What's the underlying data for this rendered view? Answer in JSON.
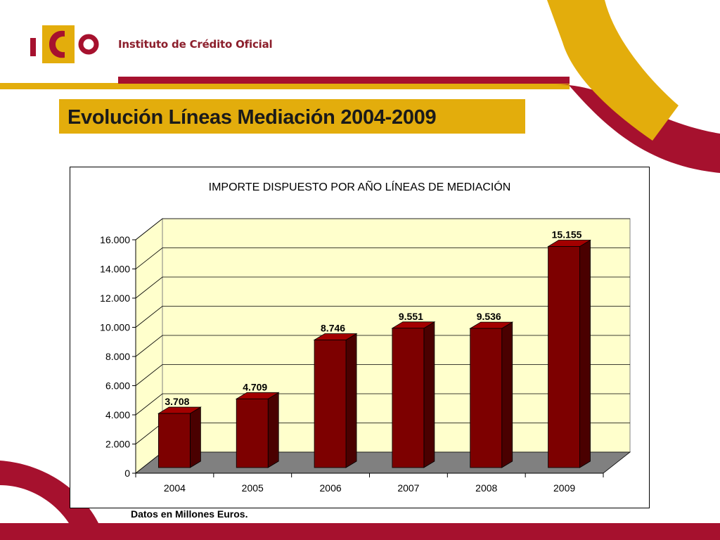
{
  "header": {
    "brand_text": "Instituto de Crédito Oficial",
    "logo_text": "ICO"
  },
  "slide": {
    "title": "Evolución Líneas Mediación 2004-2009",
    "footnote": "Datos en Millones Euros."
  },
  "colors": {
    "crimson": "#a6112e",
    "gold": "#e3ad0c",
    "bar_front": "#7d0000",
    "bar_side": "#4a0000",
    "bar_top": "#a30000",
    "plot_wall": "#ffffcc",
    "plot_floor": "#808080"
  },
  "chart_data": {
    "type": "bar",
    "style": "3d-column",
    "title": "IMPORTE DISPUESTO POR AÑO LÍNEAS DE MEDIACIÓN",
    "xlabel": "",
    "ylabel": "",
    "categories": [
      "2004",
      "2005",
      "2006",
      "2007",
      "2008",
      "2009"
    ],
    "values": [
      3708,
      4709,
      8746,
      9551,
      9536,
      15155
    ],
    "data_labels": [
      "3.708",
      "4.709",
      "8.746",
      "9.551",
      "9.536",
      "15.155"
    ],
    "ylim": [
      0,
      16000
    ],
    "y_ticks": [
      0,
      2000,
      4000,
      6000,
      8000,
      10000,
      12000,
      14000,
      16000
    ],
    "y_tick_labels": [
      "0",
      "2.000",
      "4.000",
      "6.000",
      "8.000",
      "10.000",
      "12.000",
      "14.000",
      "16.000"
    ],
    "grid": true,
    "legend": "none"
  }
}
